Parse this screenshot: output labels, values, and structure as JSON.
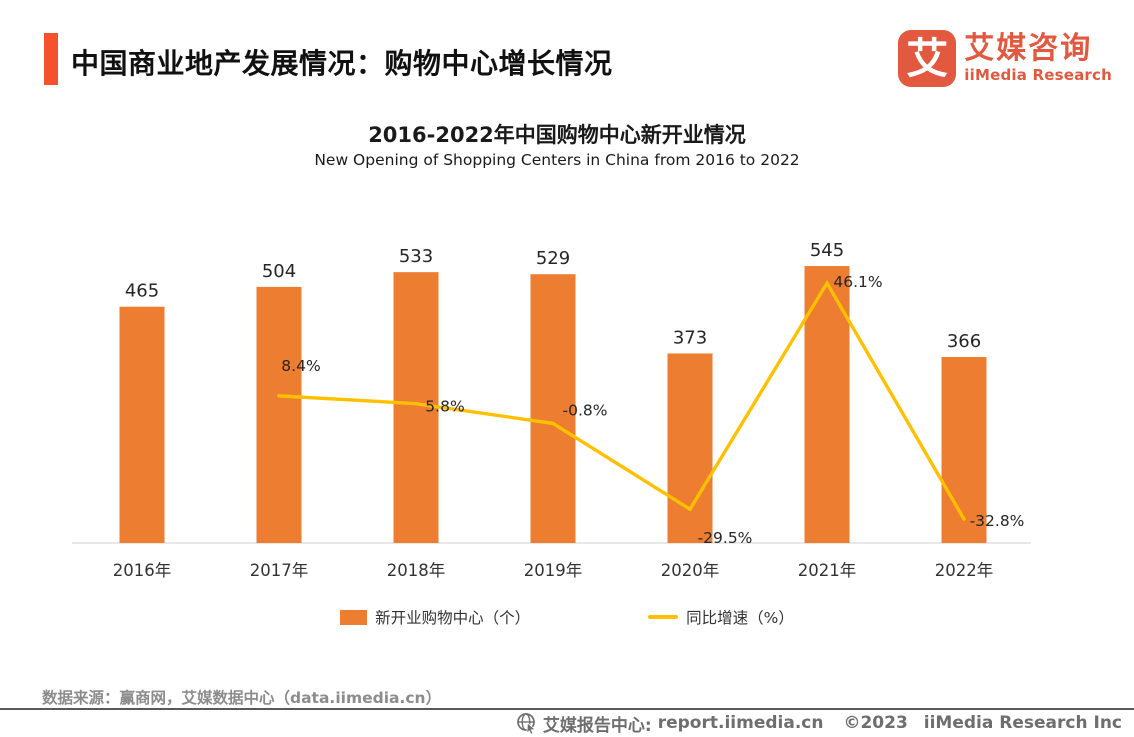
{
  "header": {
    "title": "中国商业地产发展情况：购物中心增长情况",
    "logo": {
      "mark_glyph": "艾",
      "brand_cn": "艾媒咨询",
      "brand_en": "iiMedia Research"
    }
  },
  "chart": {
    "title": "2016-2022年中国购物中心新开业情况",
    "subtitle": "New Opening of Shopping Centers in China from 2016 to 2022"
  },
  "chart_data": {
    "type": "combo",
    "categories": [
      "2016年",
      "2017年",
      "2018年",
      "2019年",
      "2020年",
      "2021年",
      "2022年"
    ],
    "series": [
      {
        "name": "新开业购物中心（个）",
        "type": "bar",
        "color": "#ED7D31",
        "values": [
          465,
          504,
          533,
          529,
          373,
          545,
          366
        ]
      },
      {
        "name": "同比增速（%）",
        "type": "line",
        "color": "#FFC000",
        "unit": "%",
        "values": [
          null,
          8.4,
          5.8,
          -0.8,
          -29.5,
          46.1,
          -32.8
        ]
      }
    ],
    "title": "2016-2022年中国购物中心新开业情况",
    "subtitle": "New Opening of Shopping Centers in China from 2016 to 2022",
    "bar_axis_range": [
      0,
      675
    ],
    "grid": false,
    "legend_position": "bottom",
    "data_labels": true
  },
  "legend": {
    "items": [
      {
        "label": "新开业购物中心（个）",
        "type": "bar"
      },
      {
        "label": "同比增速（%）",
        "type": "line"
      }
    ]
  },
  "footer": {
    "source": "数据来源：赢商网，艾媒数据中心（data.iimedia.cn）"
  },
  "bottom_bar": {
    "label": "艾媒报告中心:",
    "url": "report.iimedia.cn",
    "year": "©2023",
    "company": "iiMedia Research Inc"
  },
  "colors": {
    "bar": "#ED7D31",
    "line": "#FFC000",
    "accent": "#F4512C",
    "brand": "#E2593F",
    "axis": "#D9D9D9"
  }
}
